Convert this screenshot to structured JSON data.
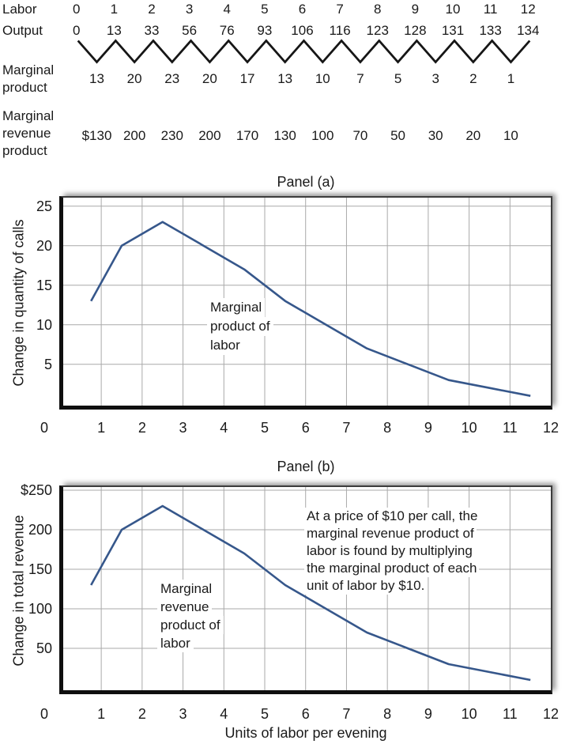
{
  "table": {
    "row_labels": [
      "Labor",
      "Output",
      "Marginal\nproduct",
      "Marginal\nrevenue\nproduct"
    ],
    "labor": [
      0,
      1,
      2,
      3,
      4,
      5,
      6,
      7,
      8,
      9,
      10,
      11,
      12
    ],
    "output": [
      0,
      13,
      33,
      56,
      76,
      93,
      106,
      116,
      123,
      128,
      131,
      133,
      134
    ],
    "marginal_product": [
      "13",
      "20",
      "23",
      "20",
      "17",
      "13",
      "10",
      "7",
      "5",
      "3",
      "2",
      "1"
    ],
    "marginal_revenue_product": [
      "$130",
      "200",
      "230",
      "200",
      "170",
      "130",
      "100",
      "70",
      "50",
      "30",
      "20",
      "10"
    ]
  },
  "chart_data": [
    {
      "type": "line",
      "panel": "Panel (a)",
      "ylabel": "Change in quantity of calls",
      "xlabel": "",
      "x": [
        0.75,
        1.5,
        2.5,
        3.5,
        4.5,
        5.5,
        6.5,
        7.5,
        8.5,
        9.5,
        10.5,
        11.5
      ],
      "values": [
        13,
        20,
        23,
        20,
        17,
        13,
        10,
        7,
        5,
        3,
        2,
        1
      ],
      "curve_label": "Marginal\nproduct of\nlabor",
      "x_ticks": [
        0,
        1,
        2,
        3,
        4,
        5,
        6,
        7,
        8,
        9,
        10,
        11,
        12
      ],
      "y_ticks": [
        5,
        10,
        15,
        20,
        25
      ],
      "y_tick_labels": [
        "5",
        "10",
        "15",
        "20",
        "25"
      ],
      "xlim": [
        0,
        12
      ],
      "ylim": [
        0,
        25
      ],
      "grid": true,
      "legend": "none",
      "line_color": "#36578b"
    },
    {
      "type": "line",
      "panel": "Panel (b)",
      "ylabel": "Change in total revenue",
      "xlabel": "Units of labor per evening",
      "x": [
        0.75,
        1.5,
        2.5,
        3.5,
        4.5,
        5.5,
        6.5,
        7.5,
        8.5,
        9.5,
        10.5,
        11.5
      ],
      "values": [
        130,
        200,
        230,
        200,
        170,
        130,
        100,
        70,
        50,
        30,
        20,
        10
      ],
      "curve_label": "Marginal\nrevenue\nproduct of\nlabor",
      "note": "At a price of $10 per call, the\nmarginal revenue product of\nlabor is found by multiplying\nthe marginal product of each\nunit of labor by $10.",
      "x_ticks": [
        0,
        1,
        2,
        3,
        4,
        5,
        6,
        7,
        8,
        9,
        10,
        11,
        12
      ],
      "y_ticks": [
        50,
        100,
        150,
        200,
        250
      ],
      "y_tick_labels": [
        "50",
        "100",
        "150",
        "200",
        "$250"
      ],
      "xlim": [
        0,
        12
      ],
      "ylim": [
        0,
        250
      ],
      "grid": true,
      "legend": "none",
      "line_color": "#36578b"
    }
  ],
  "colors": {
    "line": "#36578b",
    "grid": "#a9a9a9",
    "axis": "#0f0f0f",
    "text": "#1a1a1a"
  }
}
